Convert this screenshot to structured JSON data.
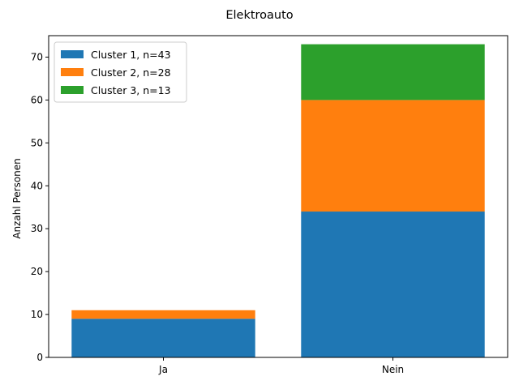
{
  "chart_data": {
    "type": "bar",
    "stacked": true,
    "title": "Elektroauto",
    "xlabel": "",
    "ylabel": "Anzahl Personen",
    "categories": [
      "Ja",
      "Nein"
    ],
    "ylim": [
      0,
      75
    ],
    "yticks": [
      0,
      10,
      20,
      30,
      40,
      50,
      60,
      70
    ],
    "grid": false,
    "legend_position": "top-left",
    "series": [
      {
        "name": "Cluster 1, n=43",
        "color": "#1f77b4",
        "values": [
          9,
          34
        ]
      },
      {
        "name": "Cluster 2, n=28",
        "color": "#ff7f0e",
        "values": [
          2,
          26
        ]
      },
      {
        "name": "Cluster 3, n=13",
        "color": "#2ca02c",
        "values": [
          0,
          13
        ]
      }
    ]
  }
}
